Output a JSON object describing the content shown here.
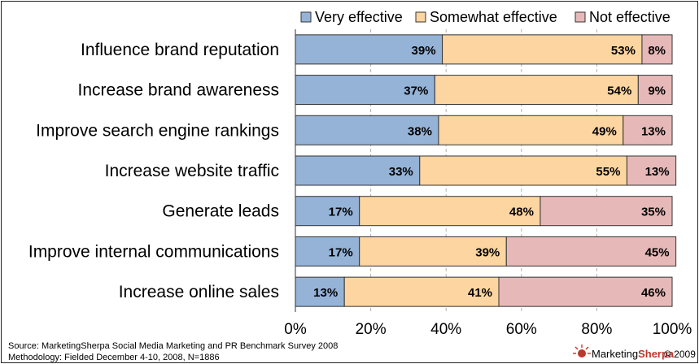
{
  "chart_data": {
    "type": "bar",
    "orientation": "horizontal",
    "stacked": true,
    "categories": [
      "Influence brand reputation",
      "Increase brand awareness",
      "Improve search engine rankings",
      "Increase website traffic",
      "Generate leads",
      "Improve internal communications",
      "Increase online sales"
    ],
    "series": [
      {
        "name": "Very effective",
        "color": "#95b3d7",
        "values": [
          39,
          37,
          38,
          33,
          17,
          17,
          13
        ]
      },
      {
        "name": "Somewhat effective",
        "color": "#fcd5a0",
        "values": [
          53,
          54,
          49,
          55,
          48,
          39,
          41
        ]
      },
      {
        "name": "Not effective",
        "color": "#e6b9b8",
        "values": [
          8,
          9,
          13,
          13,
          35,
          45,
          46
        ]
      }
    ],
    "data_label_suffix": "%",
    "xlim": [
      0,
      100
    ],
    "x_ticks": [
      "0%",
      "20%",
      "40%",
      "60%",
      "80%",
      "100%"
    ],
    "grid": "vertical dashed",
    "legend_position": "top-right"
  },
  "footer": {
    "source_line1": "Source: MarketingSherpa Social Media Marketing and PR Benchmark Survey 2008",
    "source_line2": "Methodology: Fielded December 4-10, 2008, N=1886",
    "brand_marketing": "Marketing",
    "brand_sherpa": "Sherpa",
    "copyright": "© 2009"
  }
}
